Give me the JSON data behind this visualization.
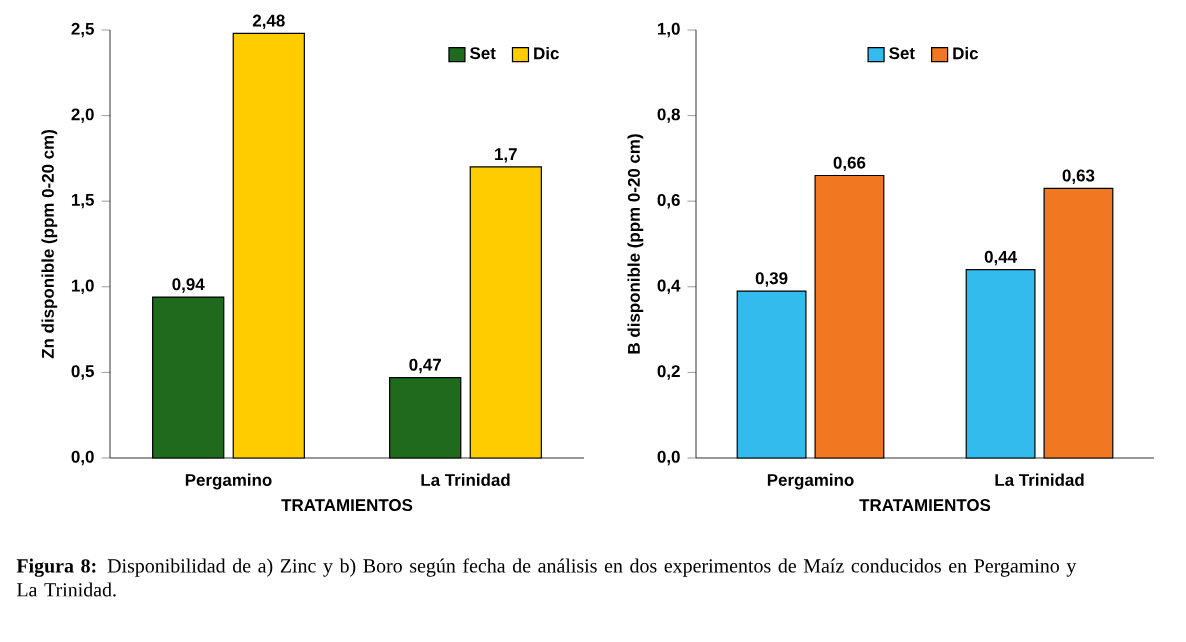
{
  "chart_data": [
    {
      "type": "bar",
      "ylabel": "Zn disponible (ppm 0-20 cm)",
      "xlabel": "TRATAMIENTOS",
      "categories": [
        "Pergamino",
        "La Trinidad"
      ],
      "series": [
        {
          "name": "Set",
          "color": "#1e6b1e",
          "values": [
            0.94,
            0.47
          ],
          "value_labels": [
            "0,94",
            "0,47"
          ]
        },
        {
          "name": "Dic",
          "color": "#ffcc00",
          "values": [
            2.48,
            1.7
          ],
          "value_labels": [
            "2,48",
            "1,7"
          ]
        }
      ],
      "ylim": [
        0,
        2.5
      ],
      "yticks": [
        {
          "value": 0,
          "label": "0,0"
        },
        {
          "value": 0.5,
          "label": "0,5"
        },
        {
          "value": 1,
          "label": "1,0"
        },
        {
          "value": 1.5,
          "label": "1,5"
        },
        {
          "value": 2,
          "label": "2,0"
        },
        {
          "value": 2.5,
          "label": "2,5"
        }
      ],
      "legend": "top right",
      "grid": false,
      "annotations": [
        "**Figura 8:** Disponibilidad de a) Zinc y b) Boro según fecha de análisis en dos experimentos de Maíz conducidos en Pergamino y La Trinidad."
      ]
    },
    {
      "type": "bar",
      "ylabel": "B disponible (ppm 0-20 cm)",
      "xlabel": "TRATAMIENTOS",
      "categories": [
        "Pergamino",
        "La Trinidad"
      ],
      "series": [
        {
          "name": "Set",
          "color": "#33bbee",
          "values": [
            0.39,
            0.44
          ],
          "value_labels": [
            "0,39",
            "0,44"
          ]
        },
        {
          "name": "Dic",
          "color": "#f07820",
          "values": [
            0.66,
            0.63
          ],
          "value_labels": [
            "0,66",
            "0,63"
          ]
        }
      ],
      "ylim": [
        0,
        1
      ],
      "yticks": [
        {
          "value": 0,
          "label": "0,0"
        },
        {
          "value": 0.2,
          "label": "0,2"
        },
        {
          "value": 0.4,
          "label": "0,4"
        },
        {
          "value": 0.6,
          "label": "0,6"
        },
        {
          "value": 0.8,
          "label": "0,8"
        },
        {
          "value": 1,
          "label": "1,0"
        }
      ],
      "legend": "top",
      "grid": false
    }
  ]
}
